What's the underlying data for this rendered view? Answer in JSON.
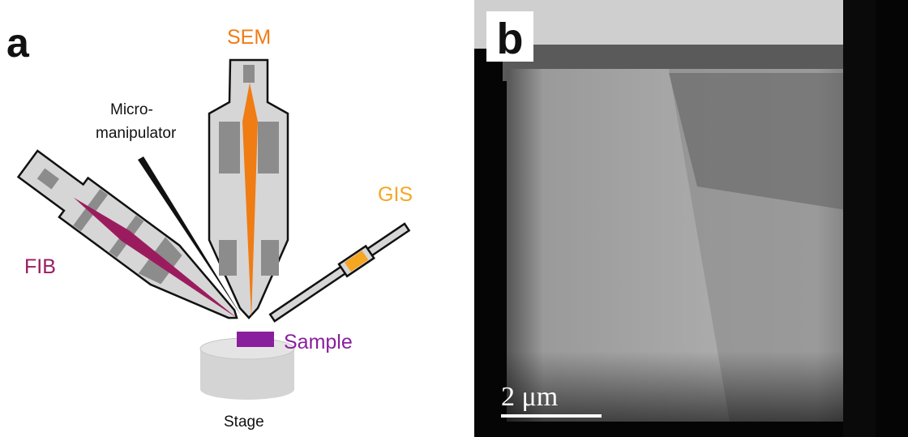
{
  "panel_a": {
    "label": "a",
    "sem": "SEM",
    "manipulator_line1": "Micro-",
    "manipulator_line2": "manipulator",
    "fib": "FIB",
    "gis": "GIS",
    "sample": "Sample",
    "stage": "Stage"
  },
  "panel_b": {
    "label": "b",
    "scale_bar": "2 μm"
  }
}
